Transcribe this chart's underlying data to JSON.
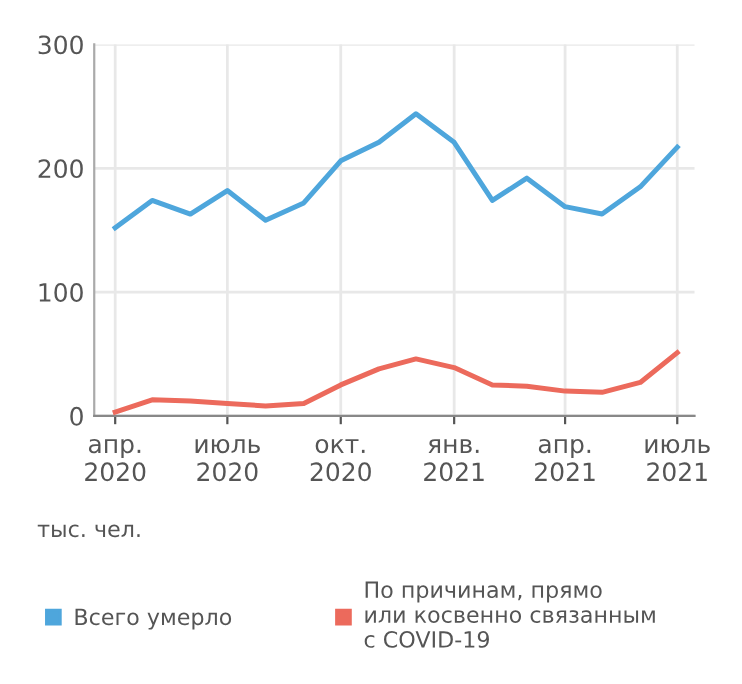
{
  "chart_data": {
    "type": "line",
    "x": [
      "2020-04",
      "2020-05",
      "2020-06",
      "2020-07",
      "2020-08",
      "2020-09",
      "2020-10",
      "2020-11",
      "2020-12",
      "2021-01",
      "2021-02",
      "2021-03",
      "2021-04",
      "2021-05",
      "2021-06",
      "2021-07"
    ],
    "series": [
      {
        "name": "Всего умерло",
        "color": "#4ea6dc",
        "values": [
          152,
          174,
          163,
          182,
          158,
          172,
          206,
          221,
          244,
          221,
          174,
          192,
          169,
          163,
          185,
          217
        ]
      },
      {
        "name": "По причинам, прямо\nили косвенно связанным\nс COVID-19",
        "color": "#ec6a5c",
        "values": [
          3,
          13,
          12,
          10,
          8,
          10,
          25,
          38,
          46,
          39,
          25,
          24,
          20,
          19,
          27,
          51
        ]
      }
    ],
    "xlim": [
      "2020-03-15",
      "2021-07-15"
    ],
    "xticks": [
      {
        "value": "2020-04",
        "label": "апр.\n2020"
      },
      {
        "value": "2020-07",
        "label": "июль\n2020"
      },
      {
        "value": "2020-10",
        "label": "окт.\n2020"
      },
      {
        "value": "2021-01",
        "label": "янв.\n2021"
      },
      {
        "value": "2021-04",
        "label": "апр.\n2021"
      },
      {
        "value": "2021-07",
        "label": "июль\n2021"
      }
    ],
    "ylim": [
      0,
      300
    ],
    "yticks": [
      0,
      100,
      200,
      300
    ],
    "grid": true,
    "legend": "bottom",
    "marker": "none",
    "line_style": "solid",
    "annotations": [
      "тыс. чел."
    ]
  }
}
